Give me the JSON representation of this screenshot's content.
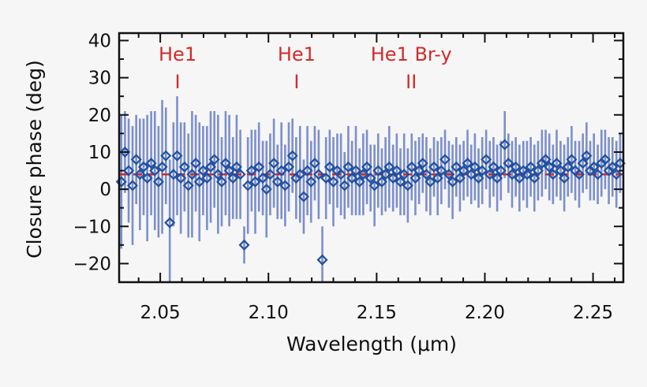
{
  "chart_data": {
    "type": "scatter",
    "title": "",
    "xlabel": "Wavelength (μm)",
    "ylabel": "Closure phase (deg)",
    "xlim": [
      2.031,
      2.264
    ],
    "ylim": [
      -25,
      42
    ],
    "x_ticks": [
      2.05,
      2.1,
      2.15,
      2.2,
      2.25
    ],
    "x_tick_labels": [
      "2.05",
      "2.10",
      "2.15",
      "2.20",
      "2.25"
    ],
    "y_ticks": [
      -20,
      -10,
      0,
      10,
      20,
      30,
      40
    ],
    "y_tick_labels": [
      "−20",
      "−10",
      "0",
      "10",
      "20",
      "30",
      "40"
    ],
    "grid": false,
    "reference_line": {
      "y": 4,
      "style": "dashed",
      "color": "#d22b2b"
    },
    "line_markers": [
      {
        "label": "He1",
        "x": 2.058,
        "mark": "I"
      },
      {
        "label": "He1",
        "x": 2.113,
        "mark": "I"
      },
      {
        "label": "He1 Br-y",
        "x": 2.166,
        "mark": "II"
      }
    ],
    "colors": {
      "marker": "#1f4fa0",
      "error_bar": "#6f84c6",
      "reference": "#d22b2b",
      "labels": "#d22b2b"
    },
    "series": [
      {
        "x": [
          2.032,
          2.0337,
          2.0354,
          2.0372,
          2.0389,
          2.0406,
          2.0423,
          2.044,
          2.0458,
          2.0475,
          2.0492,
          2.0509,
          2.0526,
          2.0544,
          2.0561,
          2.0578,
          2.0595,
          2.0612,
          2.063,
          2.0647,
          2.0664,
          2.0681,
          2.0698,
          2.0716,
          2.0733,
          2.075,
          2.0767,
          2.0784,
          2.0802,
          2.0819,
          2.0836,
          2.0853,
          2.087,
          2.0888,
          2.0905,
          2.0922,
          2.0939,
          2.0956,
          2.0974,
          2.0991,
          2.1008,
          2.1025,
          2.1042,
          2.106,
          2.1077,
          2.1094,
          2.1111,
          2.1128,
          2.1146,
          2.1163,
          2.118,
          2.1197,
          2.1214,
          2.1232,
          2.1249,
          2.1266,
          2.1283,
          2.13,
          2.1318,
          2.1335,
          2.1352,
          2.1369,
          2.1386,
          2.1404,
          2.1421,
          2.1438,
          2.1455,
          2.1472,
          2.149,
          2.1507,
          2.1524,
          2.1541,
          2.1558,
          2.1576,
          2.1593,
          2.161,
          2.1627,
          2.1644,
          2.1662,
          2.1679,
          2.1696,
          2.1713,
          2.173,
          2.1748,
          2.1765,
          2.1782,
          2.1799,
          2.1816,
          2.1834,
          2.1851,
          2.1868,
          2.1885,
          2.1902,
          2.192,
          2.1937,
          2.1954,
          2.1971,
          2.1988,
          2.2006,
          2.2023,
          2.204,
          2.2057,
          2.2074,
          2.2092,
          2.2109,
          2.2126,
          2.2143,
          2.216,
          2.2178,
          2.2195,
          2.2212,
          2.2229,
          2.2246,
          2.2264,
          2.2281,
          2.2298,
          2.2315,
          2.2332,
          2.235,
          2.2367,
          2.2384,
          2.2401,
          2.2418,
          2.2436,
          2.2453,
          2.247,
          2.2487,
          2.2504,
          2.2522,
          2.2539,
          2.2556,
          2.2573,
          2.259,
          2.2608,
          2.2625
        ],
        "y": [
          2,
          10,
          5,
          1,
          8,
          4,
          6,
          3,
          7,
          5,
          2,
          6,
          9,
          -9,
          4,
          9,
          3,
          6,
          1,
          4,
          7,
          2,
          5,
          3,
          6,
          8,
          4,
          2,
          7,
          5,
          3,
          6,
          4,
          -15,
          1,
          5,
          2,
          6,
          3,
          0,
          4,
          7,
          2,
          5,
          1,
          6,
          9,
          3,
          4,
          -2,
          5,
          2,
          7,
          4,
          -19,
          3,
          6,
          2,
          5,
          4,
          1,
          6,
          3,
          5,
          2,
          4,
          6,
          3,
          1,
          5,
          2,
          4,
          6,
          3,
          5,
          2,
          4,
          1,
          6,
          3,
          5,
          7,
          4,
          2,
          6,
          3,
          5,
          8,
          4,
          2,
          6,
          3,
          5,
          7,
          4,
          6,
          3,
          5,
          8,
          4,
          6,
          3,
          5,
          12,
          7,
          4,
          6,
          3,
          5,
          4,
          6,
          3,
          5,
          7,
          8,
          6,
          4,
          7,
          5,
          3,
          6,
          8,
          5,
          4,
          7,
          9,
          5,
          6,
          4,
          7,
          8,
          5,
          6,
          4,
          7
        ],
        "y_err": [
          18,
          11,
          14,
          16,
          12,
          15,
          13,
          17,
          14,
          16,
          15,
          18,
          13,
          17,
          14,
          16,
          15,
          12,
          14,
          17,
          13,
          16,
          12,
          14,
          15,
          13,
          16,
          12,
          14,
          15,
          11,
          14,
          12,
          5,
          13,
          11,
          14,
          12,
          10,
          13,
          11,
          12,
          10,
          13,
          11,
          12,
          10,
          11,
          13,
          10,
          12,
          11,
          10,
          12,
          9,
          11,
          10,
          12,
          10,
          11,
          9,
          11,
          10,
          12,
          9,
          11,
          10,
          9,
          11,
          10,
          9,
          10,
          11,
          9,
          10,
          9,
          11,
          10,
          9,
          10,
          9,
          8,
          10,
          9,
          8,
          10,
          9,
          8,
          9,
          10,
          8,
          9,
          8,
          9,
          8,
          9,
          8,
          9,
          8,
          9,
          8,
          9,
          8,
          9,
          8,
          9,
          8,
          9,
          8,
          9,
          8,
          9,
          8,
          9,
          8,
          9,
          8,
          9,
          8,
          9,
          8,
          9,
          8,
          9,
          8,
          9,
          8,
          9,
          8,
          9,
          8,
          9,
          8,
          9,
          8
        ]
      }
    ]
  }
}
